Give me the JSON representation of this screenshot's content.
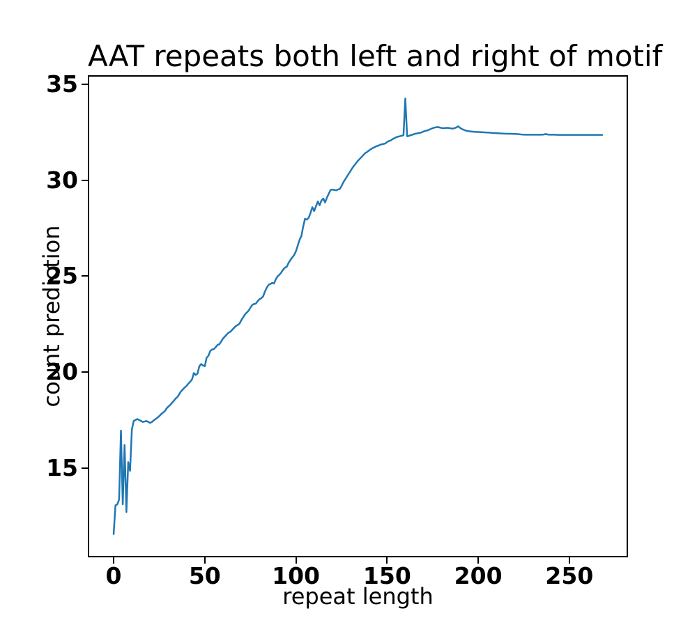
{
  "figure": {
    "title": "AAT repeats both left and right of motif",
    "xlabel": "repeat length",
    "ylabel": "count prediction"
  },
  "chart_data": {
    "type": "line",
    "title": "AAT repeats both left and right of motif",
    "xlabel": "repeat length",
    "ylabel": "count prediction",
    "xlim": [
      -13.4,
      281.4
    ],
    "ylim": [
      10.41,
      35.41
    ],
    "xticks": [
      0,
      50,
      100,
      150,
      200,
      250
    ],
    "yticks": [
      15,
      20,
      25,
      30,
      35
    ],
    "grid": false,
    "legend_position": "none",
    "line_color": "#1f77b4",
    "background": "#ffffff",
    "series": [
      {
        "name": "count prediction",
        "x": [
          0,
          1,
          2,
          3,
          4,
          5,
          6,
          7,
          8,
          9,
          10,
          11,
          12,
          13,
          14,
          15,
          16,
          17,
          18,
          19,
          20,
          21,
          22,
          23,
          24,
          25,
          26,
          27,
          28,
          29,
          30,
          31,
          32,
          33,
          34,
          35,
          36,
          37,
          38,
          39,
          40,
          41,
          42,
          43,
          44,
          45,
          46,
          47,
          48,
          49,
          50,
          51,
          52,
          53,
          54,
          55,
          56,
          57,
          58,
          59,
          60,
          61,
          62,
          63,
          64,
          65,
          66,
          67,
          68,
          69,
          70,
          71,
          72,
          73,
          74,
          75,
          76,
          77,
          78,
          79,
          80,
          81,
          82,
          83,
          84,
          85,
          86,
          87,
          88,
          89,
          90,
          91,
          92,
          93,
          94,
          95,
          96,
          97,
          98,
          99,
          100,
          101,
          102,
          103,
          104,
          105,
          106,
          107,
          108,
          109,
          110,
          111,
          112,
          113,
          114,
          115,
          116,
          117,
          118,
          119,
          120,
          121,
          122,
          123,
          124,
          125,
          126,
          127,
          128,
          129,
          130,
          131,
          132,
          133,
          134,
          135,
          136,
          137,
          138,
          139,
          140,
          141,
          142,
          143,
          144,
          145,
          146,
          147,
          148,
          149,
          150,
          151,
          152,
          153,
          154,
          155,
          156,
          157,
          158,
          159,
          160,
          161,
          162,
          163,
          164,
          165,
          166,
          167,
          168,
          169,
          170,
          171,
          172,
          173,
          174,
          175,
          176,
          177,
          178,
          179,
          180,
          181,
          182,
          183,
          184,
          185,
          186,
          187,
          188,
          189,
          190,
          191,
          192,
          193,
          194,
          195,
          196,
          197,
          198,
          200,
          202,
          204,
          206,
          208,
          210,
          212,
          214,
          216,
          218,
          220,
          222,
          224,
          226,
          228,
          230,
          232,
          234,
          236,
          237,
          238,
          240,
          242,
          244,
          246,
          248,
          250,
          252,
          254,
          256,
          258,
          260,
          262,
          264,
          266,
          268
        ],
        "y": [
          11.55,
          13.05,
          13.1,
          13.35,
          16.95,
          13.1,
          16.2,
          12.7,
          15.3,
          14.85,
          17.0,
          17.45,
          17.5,
          17.55,
          17.5,
          17.45,
          17.4,
          17.42,
          17.45,
          17.4,
          17.35,
          17.4,
          17.48,
          17.55,
          17.62,
          17.7,
          17.8,
          17.88,
          17.95,
          18.1,
          18.2,
          18.28,
          18.4,
          18.5,
          18.62,
          18.7,
          18.85,
          19.0,
          19.1,
          19.2,
          19.28,
          19.4,
          19.5,
          19.62,
          19.95,
          19.85,
          19.92,
          20.3,
          20.42,
          20.35,
          20.3,
          20.75,
          20.85,
          21.1,
          21.18,
          21.2,
          21.3,
          21.42,
          21.45,
          21.6,
          21.75,
          21.85,
          21.95,
          22.05,
          22.1,
          22.2,
          22.3,
          22.4,
          22.45,
          22.52,
          22.7,
          22.85,
          23.0,
          23.1,
          23.2,
          23.35,
          23.5,
          23.55,
          23.57,
          23.7,
          23.8,
          23.85,
          23.95,
          24.2,
          24.4,
          24.55,
          24.6,
          24.65,
          24.62,
          24.85,
          25.0,
          25.08,
          25.2,
          25.35,
          25.45,
          25.5,
          25.7,
          25.85,
          25.98,
          26.1,
          26.3,
          26.6,
          26.9,
          27.1,
          27.6,
          28.0,
          27.95,
          28.05,
          28.3,
          28.6,
          28.4,
          28.65,
          28.9,
          28.7,
          28.95,
          29.05,
          28.85,
          29.1,
          29.3,
          29.5,
          29.52,
          29.5,
          29.48,
          29.52,
          29.55,
          29.7,
          29.9,
          30.05,
          30.2,
          30.35,
          30.5,
          30.65,
          30.78,
          30.9,
          31.02,
          31.12,
          31.22,
          31.32,
          31.42,
          31.48,
          31.55,
          31.62,
          31.68,
          31.72,
          31.78,
          31.8,
          31.85,
          31.88,
          31.9,
          31.92,
          32.0,
          32.05,
          32.08,
          32.15,
          32.2,
          32.25,
          32.28,
          32.3,
          32.33,
          32.35,
          34.27,
          32.3,
          32.32,
          32.36,
          32.38,
          32.42,
          32.44,
          32.46,
          32.48,
          32.5,
          32.55,
          32.58,
          32.6,
          32.64,
          32.68,
          32.72,
          32.75,
          32.77,
          32.78,
          32.75,
          32.73,
          32.72,
          32.73,
          32.74,
          32.73,
          32.71,
          32.7,
          32.72,
          32.76,
          32.82,
          32.74,
          32.68,
          32.64,
          32.6,
          32.58,
          32.56,
          32.55,
          32.54,
          32.53,
          32.52,
          32.51,
          32.5,
          32.49,
          32.47,
          32.46,
          32.45,
          32.44,
          32.43,
          32.43,
          32.42,
          32.41,
          32.39,
          32.38,
          32.38,
          32.38,
          32.38,
          32.38,
          32.39,
          32.42,
          32.39,
          32.38,
          32.38,
          32.37,
          32.37,
          32.37,
          32.37,
          32.37,
          32.37,
          32.37,
          32.37,
          32.37,
          32.37,
          32.37,
          32.37,
          32.37
        ]
      }
    ]
  }
}
